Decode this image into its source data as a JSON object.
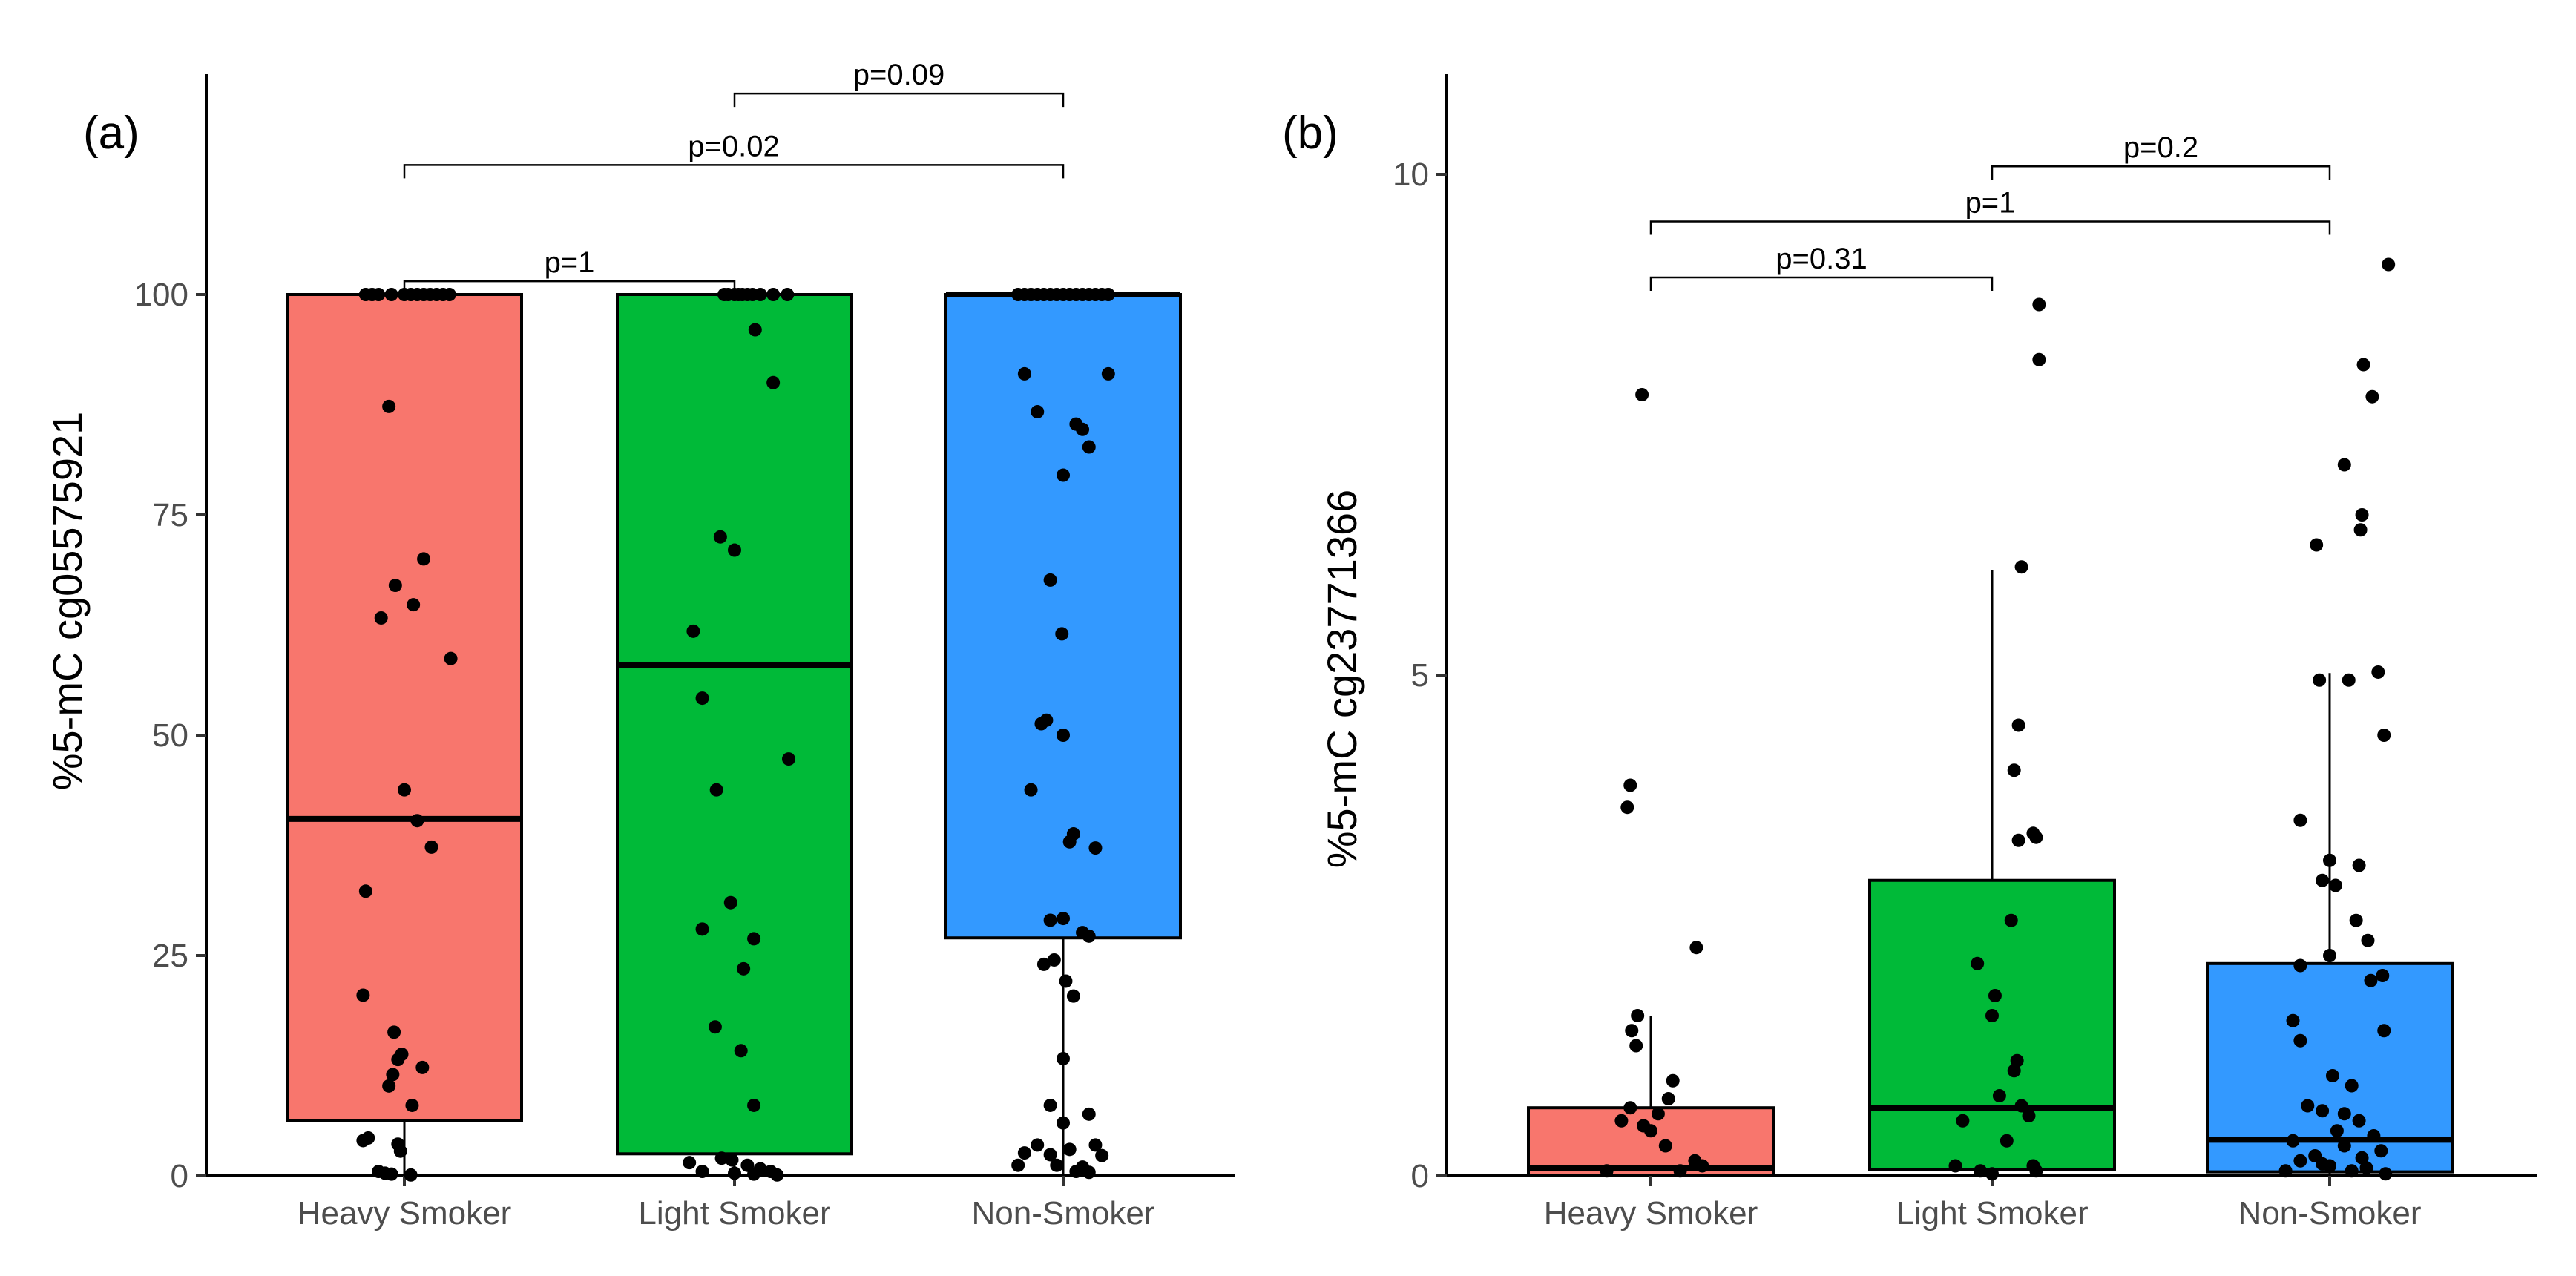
{
  "chart_data": [
    {
      "panel": "(a)",
      "type": "boxplot",
      "ylabel": "%5-mC cg05575921",
      "ylim": [
        0,
        125
      ],
      "yticks": [
        0,
        25,
        50,
        75,
        100
      ],
      "ytick_labels": [
        "0",
        "25",
        "50",
        "75",
        "100"
      ],
      "categories": [
        "Heavy Smoker",
        "Light Smoker",
        "Non-Smoker"
      ],
      "colors": [
        "#F8766D",
        "#00BA38",
        "#3399FF"
      ],
      "boxes": [
        {
          "q1": 6.3,
          "median": 40.5,
          "q3": 100,
          "whisker_low": 0,
          "whisker_high": 100
        },
        {
          "q1": 2.5,
          "median": 58,
          "q3": 100,
          "whisker_low": 0,
          "whisker_high": 100
        },
        {
          "q1": 27,
          "median": 100,
          "q3": 100,
          "whisker_low": 0,
          "whisker_high": 100
        }
      ],
      "points": [
        [
          [
            -0.3,
            100
          ],
          [
            -0.25,
            100
          ],
          [
            -0.2,
            100
          ],
          [
            -0.1,
            100
          ],
          [
            0.0,
            100
          ],
          [
            0.05,
            100
          ],
          [
            0.1,
            100
          ],
          [
            0.15,
            100
          ],
          [
            0.2,
            100
          ],
          [
            0.25,
            100
          ],
          [
            0.3,
            100
          ],
          [
            0.35,
            100
          ],
          [
            -0.12,
            87.3
          ],
          [
            0.15,
            70
          ],
          [
            -0.07,
            67
          ],
          [
            0.07,
            64.8
          ],
          [
            -0.18,
            63.3
          ],
          [
            0.36,
            58.7
          ],
          [
            0.1,
            40.3
          ],
          [
            0.0,
            43.8
          ],
          [
            0.21,
            37.3
          ],
          [
            -0.3,
            32.3
          ],
          [
            -0.32,
            20.5
          ],
          [
            -0.08,
            16.3
          ],
          [
            -0.02,
            13.8
          ],
          [
            -0.05,
            13.2
          ],
          [
            0.14,
            12.3
          ],
          [
            -0.12,
            10.2
          ],
          [
            -0.09,
            11.5
          ],
          [
            0.06,
            8
          ],
          [
            -0.28,
            4.3
          ],
          [
            -0.32,
            4
          ],
          [
            -0.05,
            3.6
          ],
          [
            -0.03,
            2.8
          ],
          [
            -0.2,
            0.5
          ],
          [
            -0.15,
            0.3
          ],
          [
            -0.1,
            0.2
          ],
          [
            0.05,
            0.1
          ]
        ],
        [
          [
            -0.08,
            100
          ],
          [
            -0.05,
            100
          ],
          [
            0.0,
            100
          ],
          [
            0.03,
            100
          ],
          [
            0.06,
            100
          ],
          [
            0.1,
            100
          ],
          [
            0.14,
            100
          ],
          [
            0.2,
            100
          ],
          [
            0.3,
            100
          ],
          [
            0.41,
            100
          ],
          [
            0.16,
            96
          ],
          [
            0.3,
            90
          ],
          [
            -0.11,
            72.5
          ],
          [
            0.0,
            71
          ],
          [
            -0.32,
            61.8
          ],
          [
            -0.25,
            54.2
          ],
          [
            0.42,
            47.3
          ],
          [
            -0.14,
            43.8
          ],
          [
            -0.03,
            31
          ],
          [
            0.15,
            26.9
          ],
          [
            0.07,
            23.5
          ],
          [
            -0.25,
            28
          ],
          [
            -0.15,
            16.9
          ],
          [
            0.05,
            14.2
          ],
          [
            0.15,
            8
          ],
          [
            -0.35,
            1.5
          ],
          [
            -0.25,
            0.5
          ],
          [
            0.0,
            0.3
          ],
          [
            0.1,
            1.2
          ],
          [
            0.15,
            0.2
          ],
          [
            0.2,
            0.8
          ],
          [
            0.28,
            0.5
          ],
          [
            -0.1,
            2
          ],
          [
            -0.02,
            1.8
          ],
          [
            0.33,
            0.1
          ]
        ],
        [
          [
            -0.35,
            100
          ],
          [
            -0.3,
            100
          ],
          [
            -0.25,
            100
          ],
          [
            -0.2,
            100
          ],
          [
            -0.15,
            100
          ],
          [
            -0.1,
            100
          ],
          [
            -0.05,
            100
          ],
          [
            0.0,
            100
          ],
          [
            0.05,
            100
          ],
          [
            0.1,
            100
          ],
          [
            0.15,
            100
          ],
          [
            0.2,
            100
          ],
          [
            0.25,
            100
          ],
          [
            0.3,
            100
          ],
          [
            0.35,
            100
          ],
          [
            -0.3,
            91
          ],
          [
            -0.2,
            86.7
          ],
          [
            0.35,
            91
          ],
          [
            0.1,
            85.3
          ],
          [
            0.15,
            84.7
          ],
          [
            0.2,
            82.7
          ],
          [
            0.0,
            79.5
          ],
          [
            -0.1,
            67.6
          ],
          [
            -0.01,
            61.5
          ],
          [
            -0.17,
            51.3
          ],
          [
            -0.13,
            51.7
          ],
          [
            0.0,
            50
          ],
          [
            -0.25,
            43.8
          ],
          [
            0.08,
            38.8
          ],
          [
            0.05,
            37.9
          ],
          [
            0.25,
            37.2
          ],
          [
            -0.1,
            29
          ],
          [
            0.0,
            29.2
          ],
          [
            0.2,
            27.2
          ],
          [
            0.15,
            27.6
          ],
          [
            -0.15,
            24
          ],
          [
            -0.07,
            24.5
          ],
          [
            0.02,
            22.1
          ],
          [
            0.08,
            20.4
          ],
          [
            0.0,
            13.3
          ],
          [
            -0.1,
            8
          ],
          [
            0.0,
            6
          ],
          [
            0.2,
            7
          ],
          [
            -0.2,
            3.5
          ],
          [
            -0.3,
            2.6
          ],
          [
            -0.1,
            2.4
          ],
          [
            -0.05,
            1.2
          ],
          [
            0.05,
            3
          ],
          [
            0.15,
            1
          ],
          [
            0.25,
            3.5
          ],
          [
            0.3,
            2.3
          ],
          [
            -0.35,
            1.2
          ],
          [
            0.1,
            0.5
          ],
          [
            0.2,
            0.4
          ]
        ]
      ],
      "brackets": [
        {
          "from": 0,
          "to": 1,
          "y": 101.5,
          "label": "p=1"
        },
        {
          "from": 0,
          "to": 2,
          "y": 114.7,
          "label": "p=0.02"
        },
        {
          "from": 1,
          "to": 2,
          "y": 122.8,
          "label": "p=0.09"
        }
      ]
    },
    {
      "panel": "(b)",
      "type": "boxplot",
      "ylabel": "%5-mC cg23771366",
      "ylim": [
        0,
        11
      ],
      "yticks": [
        0,
        5,
        10
      ],
      "ytick_labels": [
        "0",
        "5",
        "10"
      ],
      "categories": [
        "Heavy Smoker",
        "Light Smoker",
        "Non-Smoker"
      ],
      "colors": [
        "#F8766D",
        "#00BA38",
        "#3399FF"
      ],
      "boxes": [
        {
          "q1": 0,
          "median": 0.08,
          "q3": 0.68,
          "whisker_low": 0,
          "whisker_high": 1.6
        },
        {
          "q1": 0.06,
          "median": 0.68,
          "q3": 2.95,
          "whisker_low": 0,
          "whisker_high": 6.05
        },
        {
          "q1": 0.04,
          "median": 0.36,
          "q3": 2.12,
          "whisker_low": 0,
          "whisker_high": 5.02
        }
      ],
      "points": [
        [
          [
            -0.06,
            7.8
          ],
          [
            -0.14,
            3.9
          ],
          [
            -0.16,
            3.68
          ],
          [
            0.31,
            2.28
          ],
          [
            -0.09,
            1.6
          ],
          [
            -0.13,
            1.45
          ],
          [
            -0.1,
            1.3
          ],
          [
            0.15,
            0.95
          ],
          [
            -0.14,
            0.68
          ],
          [
            0.12,
            0.77
          ],
          [
            0.05,
            0.62
          ],
          [
            -0.2,
            0.55
          ],
          [
            0.0,
            0.45
          ],
          [
            0.1,
            0.3
          ],
          [
            -0.05,
            0.5
          ],
          [
            0.3,
            0.15
          ],
          [
            0.35,
            0.1
          ],
          [
            -0.3,
            0.05
          ],
          [
            0.2,
            0.05
          ]
        ],
        [
          [
            0.32,
            8.7
          ],
          [
            0.32,
            8.15
          ],
          [
            0.2,
            6.08
          ],
          [
            0.18,
            4.5
          ],
          [
            0.15,
            4.05
          ],
          [
            0.28,
            3.42
          ],
          [
            0.3,
            3.38
          ],
          [
            0.18,
            3.35
          ],
          [
            0.13,
            2.55
          ],
          [
            -0.1,
            2.12
          ],
          [
            0.02,
            1.8
          ],
          [
            0.0,
            1.6
          ],
          [
            0.17,
            1.15
          ],
          [
            0.15,
            1.05
          ],
          [
            0.05,
            0.8
          ],
          [
            0.2,
            0.7
          ],
          [
            0.25,
            0.6
          ],
          [
            -0.2,
            0.55
          ],
          [
            -0.25,
            0.1
          ],
          [
            -0.08,
            0.05
          ],
          [
            0.0,
            0.02
          ],
          [
            0.1,
            0.35
          ],
          [
            0.28,
            0.1
          ],
          [
            0.3,
            0.05
          ]
        ],
        [
          [
            0.4,
            9.1
          ],
          [
            0.23,
            8.1
          ],
          [
            0.29,
            7.78
          ],
          [
            0.1,
            7.1
          ],
          [
            0.22,
            6.6
          ],
          [
            -0.09,
            6.3
          ],
          [
            0.21,
            6.45
          ],
          [
            -0.07,
            4.95
          ],
          [
            0.13,
            4.95
          ],
          [
            0.33,
            5.03
          ],
          [
            0.37,
            4.4
          ],
          [
            -0.2,
            3.55
          ],
          [
            0.0,
            3.15
          ],
          [
            0.2,
            3.1
          ],
          [
            -0.05,
            2.95
          ],
          [
            0.04,
            2.9
          ],
          [
            0.18,
            2.55
          ],
          [
            0.36,
            2.0
          ],
          [
            -0.2,
            2.1
          ],
          [
            0.0,
            2.2
          ],
          [
            0.26,
            2.35
          ],
          [
            0.28,
            1.95
          ],
          [
            -0.25,
            1.55
          ],
          [
            -0.2,
            1.35
          ],
          [
            0.37,
            1.45
          ],
          [
            0.02,
            1.0
          ],
          [
            0.15,
            0.9
          ],
          [
            -0.15,
            0.7
          ],
          [
            -0.05,
            0.65
          ],
          [
            0.1,
            0.62
          ],
          [
            0.2,
            0.55
          ],
          [
            0.3,
            0.4
          ],
          [
            -0.25,
            0.35
          ],
          [
            -0.2,
            0.15
          ],
          [
            -0.1,
            0.2
          ],
          [
            0.0,
            0.1
          ],
          [
            0.05,
            0.45
          ],
          [
            0.25,
            0.08
          ],
          [
            0.35,
            0.25
          ],
          [
            -0.3,
            0.05
          ],
          [
            0.15,
            0.05
          ],
          [
            -0.05,
            0.12
          ],
          [
            0.1,
            0.3
          ],
          [
            0.22,
            0.18
          ],
          [
            0.38,
            0.02
          ]
        ]
      ],
      "brackets": [
        {
          "from": 0,
          "to": 1,
          "y": 8.97,
          "label": "p=0.31"
        },
        {
          "from": 0,
          "to": 2,
          "y": 9.53,
          "label": "p=1"
        },
        {
          "from": 1,
          "to": 2,
          "y": 10.08,
          "label": "p=0.2"
        }
      ]
    }
  ]
}
